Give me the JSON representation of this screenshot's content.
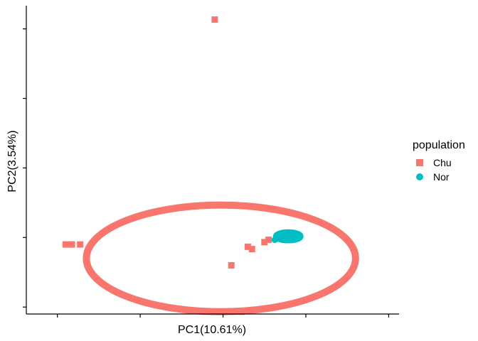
{
  "chart_data": {
    "type": "scatter",
    "xlabel": "PC1(10.61%)",
    "ylabel": "PC2(3.54%)",
    "xlim": [
      -0.95,
      0.85
    ],
    "ylim": [
      -0.43,
      0.9
    ],
    "x_ticks": [
      -0.8,
      -0.4,
      0.0,
      0.4,
      0.8
    ],
    "y_ticks": [
      -0.4,
      -0.1,
      0.2,
      0.5,
      0.8
    ],
    "x_tick_labels_visible": false,
    "y_tick_labels_visible": false,
    "grid": false,
    "legend": {
      "title": "population",
      "position": "right"
    },
    "series": [
      {
        "name": "Chu",
        "color": "#F8766D",
        "marker": "square",
        "points": [
          [
            -0.04,
            0.84
          ],
          [
            -0.76,
            -0.13
          ],
          [
            -0.74,
            -0.13
          ],
          [
            -0.73,
            -0.13
          ],
          [
            -0.69,
            -0.13
          ],
          [
            0.04,
            -0.22
          ],
          [
            0.12,
            -0.14
          ],
          [
            0.14,
            -0.15
          ],
          [
            0.2,
            -0.12
          ],
          [
            0.22,
            -0.11
          ],
          [
            -0.02,
            -0.42
          ],
          [
            0.09,
            -0.42
          ]
        ],
        "ellipse": {
          "center": [
            -0.01,
            -0.19
          ],
          "semi_axis_x": 0.65,
          "semi_axis_y": 0.23
        }
      },
      {
        "name": "Nor",
        "color": "#00BFC4",
        "marker": "circle",
        "points": [
          [
            0.25,
            -0.11
          ],
          [
            0.26,
            -0.1
          ],
          [
            0.27,
            -0.09
          ],
          [
            0.28,
            -0.1
          ],
          [
            0.29,
            -0.09
          ],
          [
            0.3,
            -0.1
          ],
          [
            0.31,
            -0.09
          ],
          [
            0.32,
            -0.1
          ],
          [
            0.33,
            -0.09
          ],
          [
            0.34,
            -0.1
          ],
          [
            0.35,
            -0.1
          ],
          [
            0.29,
            -0.11
          ],
          [
            0.31,
            -0.11
          ],
          [
            0.33,
            -0.11
          ],
          [
            0.3,
            -0.08
          ],
          [
            0.32,
            -0.08
          ]
        ],
        "ellipse": {
          "center": [
            0.315,
            -0.095
          ],
          "semi_axis_x": 0.06,
          "semi_axis_y": 0.018
        }
      }
    ]
  }
}
